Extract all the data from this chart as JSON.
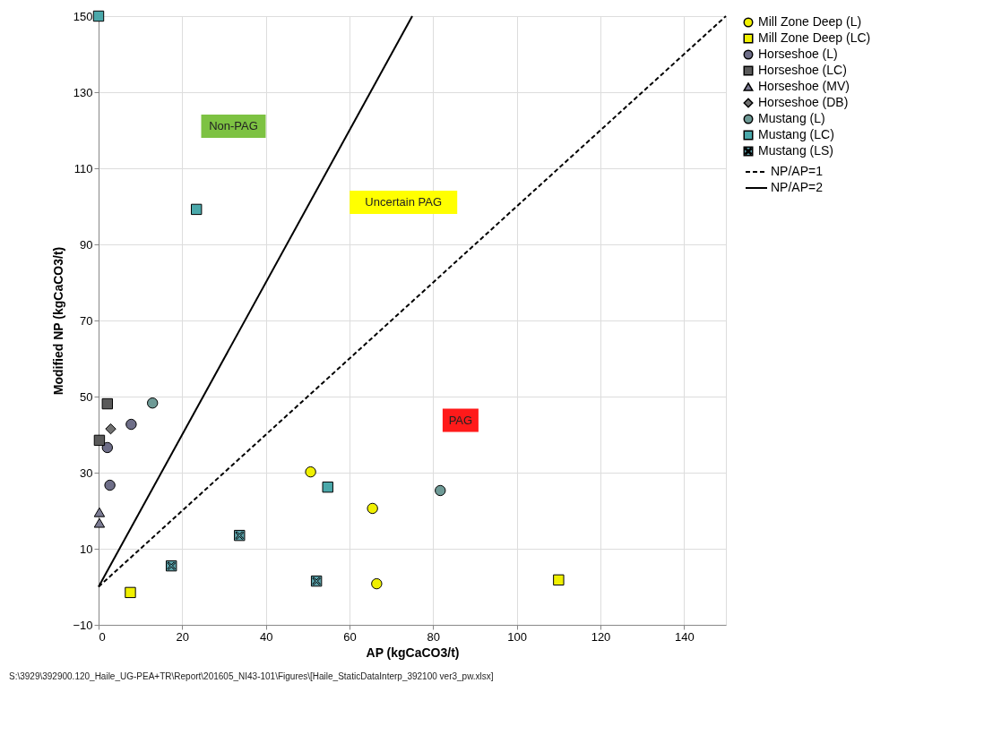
{
  "chart_data": {
    "type": "scatter",
    "xlabel": "AP (kgCaCO3/t)",
    "ylabel": "Modified NP (kgCaCO3/t)",
    "xlim": [
      0,
      150
    ],
    "xticks": [
      0,
      20,
      40,
      60,
      80,
      100,
      120,
      140
    ],
    "ylim": [
      -10,
      150
    ],
    "yticks": [
      -10,
      10,
      30,
      50,
      70,
      90,
      110,
      130,
      150
    ],
    "grid": true,
    "legend": "right",
    "series": [
      {
        "name": "Mill Zone Deep (L)",
        "color": "#f0f000",
        "marker": "circle",
        "x": [
          50.7,
          65.5,
          66.5
        ],
        "values": [
          30.2,
          20.6,
          0.8
        ]
      },
      {
        "name": "Mill Zone Deep (LC)",
        "color": "#f0f000",
        "marker": "square",
        "x": [
          7.6,
          110
        ],
        "values": [
          -1.5,
          1.8
        ]
      },
      {
        "name": "Horseshoe (L)",
        "color": "#6e6e88",
        "marker": "circle",
        "x": [
          7.8,
          2.1,
          2.7
        ],
        "values": [
          42.7,
          36.6,
          26.7
        ]
      },
      {
        "name": "Horseshoe (LC)",
        "color": "#5a5a5a",
        "marker": "square",
        "x": [
          2.1,
          0.2
        ],
        "values": [
          48.1,
          38.5
        ]
      },
      {
        "name": "Horseshoe (MV)",
        "color": "#7a7a92",
        "marker": "triangle",
        "x": [
          0.2,
          0.2
        ],
        "values": [
          19.6,
          16.8
        ]
      },
      {
        "name": "Horseshoe (DB)",
        "color": "#707070",
        "marker": "diamond",
        "x": [
          2.9
        ],
        "values": [
          41.5
        ]
      },
      {
        "name": "Mustang (L)",
        "color": "#6e9a96",
        "marker": "circle",
        "x": [
          12.9,
          81.7
        ],
        "values": [
          48.3,
          25.3
        ]
      },
      {
        "name": "Mustang (LC)",
        "color": "#4aa8aa",
        "marker": "square",
        "x": [
          0,
          23.4,
          54.8
        ],
        "values": [
          150,
          99.2,
          26.2
        ]
      },
      {
        "name": "Mustang (LS)",
        "color": "#5aa0a8",
        "marker": "cross",
        "x": [
          17.4,
          33.7,
          52.1
        ],
        "values": [
          5.5,
          13.5,
          1.5
        ]
      },
      {
        "name": "NP/AP=1",
        "type": "line",
        "color": "#000000",
        "line_style": "dashed",
        "x": [
          0,
          150
        ],
        "values": [
          0,
          150
        ]
      },
      {
        "name": "NP/AP=2",
        "type": "line",
        "color": "#000000",
        "line_style": "solid",
        "x": [
          0,
          75
        ],
        "values": [
          0,
          150
        ]
      }
    ],
    "annotations": [
      "Non-PAG",
      "Uncertain PAG",
      "PAG",
      "S:\\3929\\392900.120_Haile_UG-PEA+TR\\Report\\201605_NI43-101\\Figures\\[Haile_StaticDataInterp_392100 ver3_pw.xlsx]"
    ]
  }
}
